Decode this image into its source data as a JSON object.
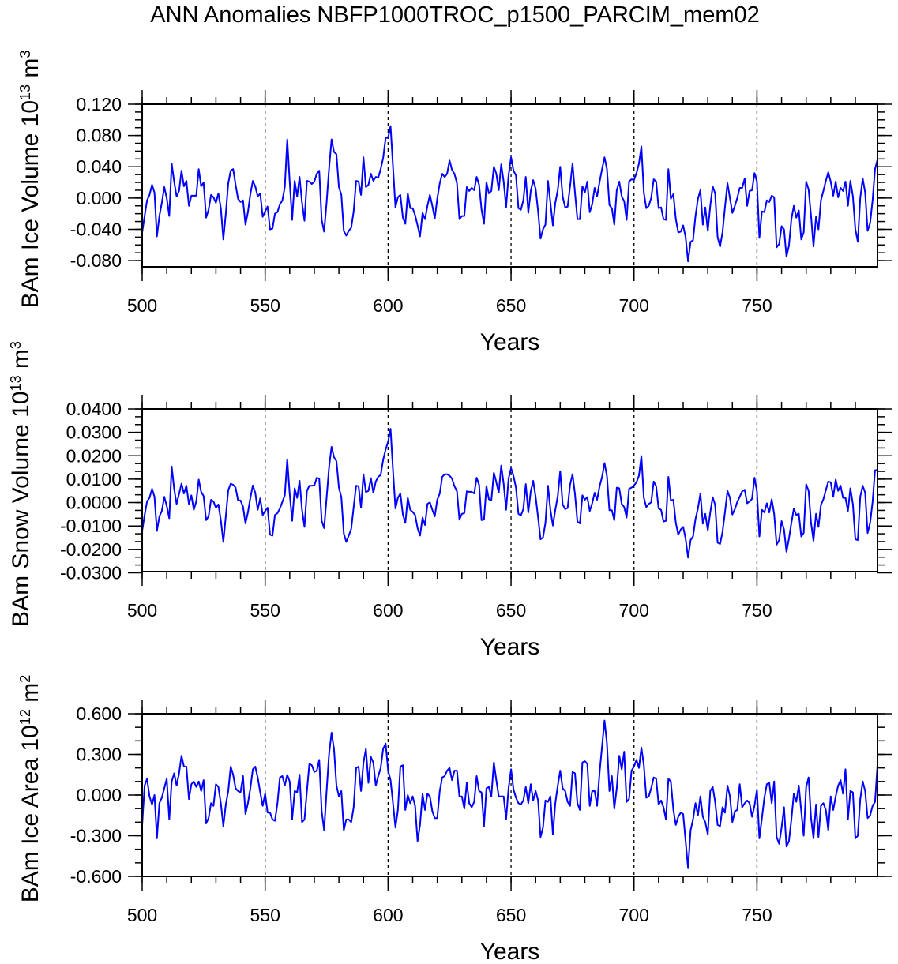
{
  "title": "ANN Anomalies NBFP1000TROC_p1500_PARCIM_mem02",
  "line_color": "#0000ff",
  "chart_data": [
    {
      "type": "line",
      "xlabel": "Years",
      "ylabel": {
        "main": "BAm Ice Volume 10",
        "exp": "13",
        "unit": " m",
        "unit_exp": "3"
      },
      "xlim": [
        500,
        799
      ],
      "ylim": [
        -0.088,
        0.12
      ],
      "xticks": [
        500,
        550,
        600,
        650,
        700,
        750
      ],
      "xtick_labels": [
        "500",
        "550",
        "600",
        "650",
        "700",
        "750"
      ],
      "xminor_step": 10,
      "yticks": [
        0.12,
        0.08,
        0.04,
        0.0,
        -0.04,
        -0.08
      ],
      "ytick_labels": [
        "0.120",
        "0.080",
        "0.040",
        "0.000",
        "-0.040",
        "-0.080"
      ],
      "yminor_step": 0.01,
      "reference_lines_x": [
        550,
        600,
        650,
        700,
        750
      ],
      "grid": false,
      "x_start": 500,
      "values": [
        -0.044,
        -0.023,
        -0.003,
        0.004,
        0.017,
        0.007,
        -0.049,
        -0.023,
        -0.006,
        0.014,
        0.0,
        -0.023,
        0.044,
        0.021,
        0.002,
        0.009,
        0.035,
        0.015,
        0.022,
        -0.01,
        0.003,
        0.003,
        0.003,
        0.037,
        0.015,
        0.02,
        -0.025,
        -0.015,
        0.004,
        0.001,
        -0.006,
        0.006,
        -0.013,
        -0.053,
        -0.02,
        0.019,
        0.035,
        0.037,
        0.017,
        -0.001,
        -0.005,
        -0.003,
        -0.034,
        -0.018,
        0.005,
        0.022,
        0.015,
        0.002,
        0.006,
        -0.024,
        -0.017,
        -0.011,
        -0.04,
        -0.039,
        -0.02,
        -0.018,
        -0.008,
        -0.003,
        0.014,
        0.075,
        0.021,
        -0.028,
        0.022,
        0.002,
        0.027,
        -0.006,
        -0.029,
        0.022,
        0.021,
        0.018,
        0.021,
        0.031,
        0.035,
        -0.028,
        -0.043,
        -0.006,
        0.037,
        0.075,
        0.059,
        0.056,
        0.014,
        0.004,
        -0.042,
        -0.048,
        -0.042,
        -0.038,
        -0.017,
        0.022,
        0.021,
        0.004,
        0.052,
        0.014,
        0.017,
        0.031,
        0.022,
        0.027,
        0.026,
        0.037,
        0.051,
        0.077,
        0.077,
        0.092,
        0.04,
        -0.012,
        0.001,
        0.004,
        -0.025,
        -0.033,
        0.006,
        -0.013,
        -0.013,
        -0.022,
        -0.035,
        -0.049,
        -0.019,
        -0.027,
        -0.01,
        0.004,
        -0.01,
        -0.026,
        -0.001,
        0.019,
        0.031,
        0.027,
        0.031,
        0.048,
        0.036,
        0.031,
        0.019,
        -0.027,
        -0.023,
        -0.023,
        0.014,
        0.009,
        0.013,
        0.01,
        0.027,
        0.017,
        -0.015,
        -0.033,
        0.02,
        0.006,
        0.009,
        0.04,
        0.031,
        0.01,
        0.043,
        0.021,
        -0.012,
        0.029,
        0.052,
        0.035,
        0.029,
        -0.013,
        -0.015,
        -0.003,
        0.027,
        -0.019,
        0.009,
        0.023,
        0.012,
        -0.017,
        -0.052,
        -0.04,
        -0.034,
        0.022,
        -0.006,
        -0.035,
        -0.006,
        0.01,
        0.04,
        0.002,
        -0.012,
        -0.011,
        0.015,
        0.044,
        0.007,
        -0.027,
        -0.027,
        0.015,
        0.007,
        0.021,
        -0.018,
        -0.008,
        0.013,
        0.002,
        0.021,
        0.037,
        0.052,
        0.037,
        -0.009,
        -0.013,
        -0.034,
        0.01,
        0.021,
        0.002,
        -0.004,
        -0.028,
        0.021,
        0.024,
        0.023,
        0.032,
        0.044,
        0.066,
        0.007,
        -0.013,
        -0.01,
        0.0,
        0.024,
        0.021,
        -0.013,
        -0.012,
        -0.027,
        -0.028,
        0.037,
        -0.001,
        0.005,
        -0.027,
        -0.044,
        -0.043,
        -0.035,
        -0.05,
        -0.081,
        -0.056,
        -0.054,
        -0.023,
        -0.001,
        0.01,
        -0.034,
        -0.012,
        -0.042,
        -0.01,
        0.015,
        0.006,
        -0.05,
        -0.062,
        -0.044,
        -0.012,
        0.019,
        0.0,
        -0.019,
        -0.01,
        0.0,
        0.013,
        0.013,
        0.025,
        -0.01,
        0.009,
        0.01,
        0.032,
        0.021,
        -0.051,
        -0.017,
        -0.018,
        -0.003,
        -0.005,
        0.003,
        0.001,
        -0.063,
        -0.059,
        -0.036,
        -0.04,
        -0.075,
        -0.061,
        -0.027,
        -0.01,
        -0.025,
        -0.016,
        -0.053,
        -0.044,
        0.021,
        0.011,
        -0.023,
        -0.062,
        -0.024,
        -0.04,
        -0.003,
        0.009,
        0.022,
        0.033,
        0.021,
        0.003,
        0.021,
        0.001,
        0.013,
        0.009,
        0.021,
        -0.01,
        0.022,
        0.002,
        -0.04,
        -0.056,
        0.0,
        0.025,
        0.007,
        -0.042,
        -0.032,
        -0.003,
        0.037,
        0.049
      ]
    },
    {
      "type": "line",
      "xlabel": "Years",
      "ylabel": {
        "main": "BAm Snow Volume 10",
        "exp": "13",
        "unit": " m",
        "unit_exp": "3"
      },
      "xlim": [
        500,
        799
      ],
      "ylim": [
        -0.0295,
        0.04
      ],
      "xticks": [
        500,
        550,
        600,
        650,
        700,
        750
      ],
      "xtick_labels": [
        "500",
        "550",
        "600",
        "650",
        "700",
        "750"
      ],
      "xminor_step": 10,
      "yticks": [
        0.04,
        0.03,
        0.02,
        0.01,
        0.0,
        -0.01,
        -0.02,
        -0.03
      ],
      "ytick_labels": [
        "0.0400",
        "0.0300",
        "0.0200",
        "0.0100",
        "0.0000",
        "-0.0100",
        "-0.0200",
        "-0.0300"
      ],
      "yminor_step": 0.003333,
      "reference_lines_x": [
        550,
        600,
        650,
        700,
        750
      ],
      "grid": false,
      "x_start": 500,
      "values": [
        -0.0121,
        -0.0053,
        0.0005,
        0.002,
        0.0059,
        0.0025,
        -0.0121,
        -0.0059,
        -0.0036,
        0.0025,
        -0.0014,
        -0.0067,
        0.0154,
        0.0059,
        -0.0006,
        0.0037,
        0.0081,
        0.0039,
        0.0072,
        -0.0006,
        0.0031,
        -0.0031,
        0.0005,
        0.0098,
        0.0046,
        0.0028,
        -0.0075,
        -0.0059,
        0.0012,
        0.0005,
        -0.0022,
        -0.0008,
        -0.0075,
        -0.0168,
        -0.0059,
        0.0053,
        0.0081,
        0.0076,
        0.0064,
        0.0009,
        0.0009,
        -0.0017,
        -0.0089,
        -0.0042,
        0.002,
        0.0073,
        0.0042,
        -0.0031,
        0.0018,
        -0.0053,
        -0.0036,
        -0.0022,
        -0.0137,
        -0.0141,
        -0.0053,
        -0.0045,
        -0.0025,
        0.0003,
        0.0031,
        0.0185,
        0.0037,
        -0.0078,
        0.0061,
        0.002,
        0.0093,
        -0.0031,
        -0.0104,
        0.005,
        0.0072,
        0.0072,
        0.0073,
        0.0106,
        0.0102,
        -0.0078,
        -0.0109,
        0.002,
        0.0149,
        0.0238,
        0.0194,
        0.0177,
        0.0064,
        0.0023,
        -0.0132,
        -0.0168,
        -0.0141,
        -0.0112,
        -0.0019,
        0.0072,
        0.007,
        -0.0022,
        0.0121,
        0.0045,
        0.005,
        0.0104,
        0.0042,
        0.009,
        0.011,
        0.0118,
        0.0182,
        0.0227,
        0.0261,
        0.0315,
        0.0138,
        -0.0025,
        0.002,
        0.0039,
        -0.0051,
        -0.0087,
        0.002,
        -0.0031,
        -0.004,
        -0.0053,
        -0.0109,
        -0.0141,
        -0.0064,
        -0.0096,
        -0.0006,
        0.0001,
        -0.0031,
        -0.0059,
        0.0012,
        0.0039,
        0.011,
        0.0121,
        0.0121,
        0.0115,
        0.0102,
        0.007,
        0.0048,
        -0.0073,
        -0.0048,
        -0.0045,
        0.0048,
        0.0046,
        0.0046,
        0.0039,
        0.0106,
        0.0076,
        -0.0075,
        -0.0073,
        0.007,
        0.0014,
        0.0009,
        0.0127,
        0.0087,
        0.0042,
        0.0158,
        0.0081,
        -0.0031,
        0.0102,
        0.0147,
        0.0113,
        0.0064,
        -0.0048,
        -0.0055,
        -0.0028,
        0.0079,
        -0.0042,
        0.0048,
        0.0093,
        0.0025,
        -0.0064,
        -0.0157,
        -0.0149,
        -0.0087,
        0.0072,
        -0.0031,
        -0.0098,
        -0.0031,
        0.0028,
        0.0134,
        -0.0008,
        -0.0028,
        -0.0023,
        0.0076,
        0.0121,
        0.0037,
        -0.0081,
        -0.0089,
        0.0031,
        0.0012,
        0.0023,
        -0.0036,
        -0.0003,
        0.0042,
        0.0012,
        0.007,
        0.011,
        0.0169,
        0.0113,
        -0.0033,
        -0.0033,
        -0.0075,
        0.0064,
        0.0061,
        -0.0006,
        -0.0019,
        -0.0064,
        0.0059,
        0.0064,
        0.0073,
        0.0087,
        0.0115,
        0.0199,
        0.002,
        -0.0019,
        -0.0006,
        0.0001,
        0.009,
        0.007,
        -0.0025,
        -0.0031,
        -0.0081,
        -0.0078,
        0.011,
        0.0009,
        0.0012,
        -0.0087,
        -0.0137,
        -0.0115,
        -0.0104,
        -0.0154,
        -0.0235,
        -0.016,
        -0.0145,
        -0.007,
        -0.0025,
        0.0039,
        -0.009,
        -0.0048,
        -0.0118,
        -0.0042,
        0.0023,
        -0.001,
        -0.0171,
        -0.0177,
        -0.0126,
        -0.0042,
        0.005,
        0.002,
        -0.0051,
        -0.0028,
        0.0003,
        0.0025,
        0.0048,
        0.0055,
        -0.0003,
        0.0005,
        0.0016,
        0.0106,
        0.0048,
        -0.0145,
        -0.0031,
        -0.0042,
        -0.0003,
        -0.0042,
        0.0014,
        -0.0048,
        -0.018,
        -0.016,
        -0.0079,
        -0.0115,
        -0.021,
        -0.0154,
        -0.0087,
        -0.0025,
        -0.0053,
        -0.0048,
        -0.0145,
        -0.013,
        0.0078,
        0.005,
        -0.0087,
        -0.0163,
        -0.0048,
        -0.0104,
        -0.001,
        0.0014,
        0.0053,
        0.009,
        0.0087,
        0.0025,
        0.0098,
        0.005,
        0.0072,
        0.002,
        0.002,
        -0.0036,
        0.0061,
        -0.0008,
        -0.0157,
        -0.016,
        0.0025,
        0.0072,
        0.0042,
        -0.013,
        -0.0087,
        0.0003,
        0.0138,
        0.014
      ]
    },
    {
      "type": "line",
      "xlabel": "Years",
      "ylabel": {
        "main": "BAm Ice Area 10",
        "exp": "12",
        "unit": " m",
        "unit_exp": "2"
      },
      "xlim": [
        500,
        799
      ],
      "ylim": [
        -0.6,
        0.6
      ],
      "xticks": [
        500,
        550,
        600,
        650,
        700,
        750
      ],
      "xtick_labels": [
        "500",
        "550",
        "600",
        "650",
        "700",
        "750"
      ],
      "xminor_step": 10,
      "yticks": [
        0.6,
        0.3,
        0.0,
        -0.3,
        -0.6
      ],
      "ytick_labels": [
        "0.600",
        "0.300",
        "0.000",
        "-0.300",
        "-0.600"
      ],
      "yminor_step": 0.1,
      "reference_lines_x": [
        550,
        600,
        650,
        700,
        750
      ],
      "grid": false,
      "x_start": 500,
      "values": [
        -0.22,
        0.07,
        0.12,
        -0.01,
        -0.07,
        0.0,
        -0.32,
        -0.06,
        -0.02,
        0.05,
        0.12,
        -0.18,
        0.1,
        0.16,
        0.07,
        0.16,
        0.29,
        0.21,
        0.21,
        -0.03,
        0.08,
        0.1,
        0.06,
        0.1,
        0.03,
        0.11,
        -0.21,
        -0.17,
        -0.06,
        -0.08,
        0.08,
        0.06,
        -0.06,
        -0.23,
        -0.07,
        0.03,
        0.21,
        0.15,
        0.05,
        0.03,
        0.02,
        0.14,
        -0.14,
        -0.06,
        0.05,
        0.19,
        0.21,
        0.13,
        0.02,
        -0.08,
        0.01,
        -0.13,
        -0.13,
        -0.18,
        -0.19,
        -0.06,
        0.13,
        0.14,
        0.07,
        0.15,
        0.1,
        -0.18,
        0.03,
        0.02,
        0.15,
        -0.2,
        -0.18,
        0.03,
        0.23,
        0.22,
        0.17,
        0.18,
        0.26,
        -0.12,
        -0.26,
        0.03,
        0.3,
        0.46,
        0.34,
        0.07,
        -0.01,
        0.03,
        -0.26,
        -0.18,
        -0.18,
        -0.2,
        -0.09,
        0.2,
        0.21,
        0.03,
        0.24,
        0.34,
        0.09,
        0.28,
        0.24,
        0.07,
        0.14,
        0.2,
        0.34,
        0.38,
        0.18,
        0.11,
        -0.06,
        -0.24,
        -0.11,
        0.21,
        0.22,
        -0.11,
        0.0,
        -0.06,
        -0.01,
        -0.08,
        -0.34,
        -0.22,
        0.01,
        -0.11,
        0.01,
        -0.01,
        -0.12,
        -0.17,
        -0.17,
        0.03,
        0.13,
        0.14,
        0.18,
        0.2,
        0.11,
        0.18,
        0.18,
        -0.01,
        -0.01,
        -0.1,
        0.09,
        -0.06,
        -0.09,
        -0.05,
        0.14,
        0.03,
        0.02,
        -0.23,
        0.05,
        0.06,
        -0.01,
        0.24,
        0.11,
        -0.01,
        -0.01,
        -0.01,
        -0.18,
        0.05,
        0.19,
        0.04,
        -0.02,
        -0.06,
        -0.07,
        -0.04,
        0.06,
        -0.06,
        0.08,
        -0.04,
        0.03,
        -0.04,
        -0.31,
        -0.24,
        -0.04,
        -0.05,
        -0.01,
        -0.29,
        -0.06,
        0.07,
        0.18,
        0.05,
        0.03,
        -0.05,
        -0.08,
        0.17,
        0.16,
        -0.06,
        -0.11,
        0.24,
        0.25,
        0.23,
        -0.08,
        0.03,
        0.03,
        -0.08,
        0.17,
        0.36,
        0.55,
        0.38,
        0.03,
        0.14,
        -0.1,
        0.05,
        0.29,
        0.19,
        0.32,
        -0.05,
        -0.03,
        0.18,
        0.21,
        0.26,
        0.2,
        0.35,
        0.22,
        -0.02,
        -0.01,
        0.05,
        0.13,
        0.12,
        -0.07,
        -0.04,
        -0.09,
        -0.18,
        0.12,
        0.1,
        -0.11,
        -0.22,
        -0.16,
        -0.13,
        -0.14,
        -0.34,
        -0.54,
        -0.26,
        -0.18,
        -0.06,
        -0.15,
        -0.01,
        -0.16,
        -0.2,
        -0.29,
        0.03,
        0.06,
        -0.05,
        -0.22,
        -0.23,
        -0.09,
        -0.13,
        0.07,
        -0.01,
        -0.2,
        -0.12,
        -0.11,
        0.08,
        -0.09,
        -0.06,
        -0.04,
        -0.06,
        -0.16,
        -0.08,
        0.04,
        -0.32,
        -0.17,
        -0.02,
        0.08,
        0.09,
        -0.06,
        0.1,
        -0.31,
        -0.36,
        -0.24,
        -0.09,
        -0.38,
        -0.34,
        -0.18,
        0.01,
        -0.05,
        0.07,
        -0.12,
        -0.3,
        0.06,
        0.13,
        -0.17,
        -0.32,
        -0.07,
        -0.31,
        -0.08,
        -0.06,
        -0.11,
        -0.26,
        -0.01,
        -0.11,
        -0.01,
        0.07,
        0.11,
        0.01,
        0.19,
        -0.18,
        0.03,
        0.02,
        -0.32,
        -0.3,
        -0.03,
        0.1,
        0.03,
        -0.17,
        -0.15,
        -0.08,
        -0.05,
        0.22
      ]
    }
  ]
}
